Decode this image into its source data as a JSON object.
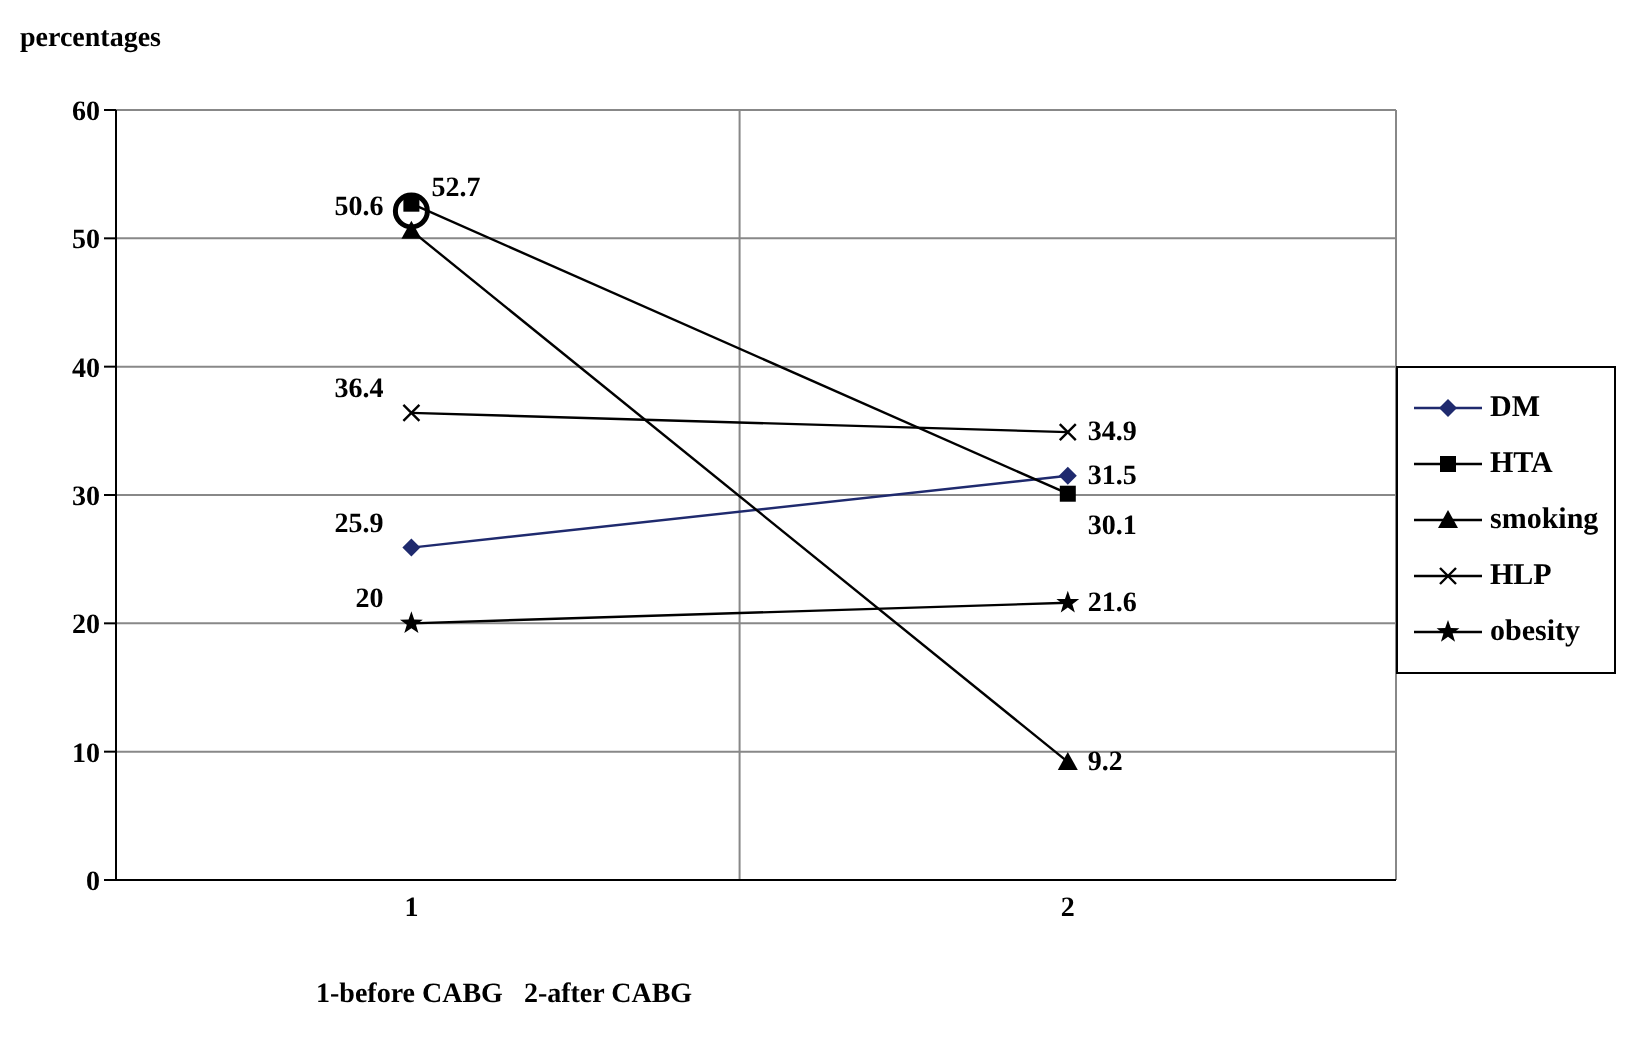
{
  "chart_data": {
    "type": "line",
    "ylabel": "percentages",
    "xlabel": "1-before CABG   2-after CABG",
    "categories": [
      "1",
      "2"
    ],
    "ylim": [
      0,
      60
    ],
    "yticks": [
      0,
      10,
      20,
      30,
      40,
      50,
      60
    ],
    "grid": true,
    "legend": "right",
    "data_labels": true,
    "line_style": "solid",
    "series": [
      {
        "name": "DM",
        "color": "#1f2a6e",
        "marker": "diamond",
        "values": [
          25.9,
          31.5
        ]
      },
      {
        "name": "HTA",
        "color": "#000000",
        "marker": "square",
        "values": [
          52.7,
          30.1
        ]
      },
      {
        "name": "smoking",
        "color": "#000000",
        "marker": "triangle",
        "values": [
          50.6,
          9.2
        ]
      },
      {
        "name": "HLP",
        "color": "#000000",
        "marker": "cross",
        "values": [
          36.4,
          34.9
        ]
      },
      {
        "name": "obesity",
        "color": "#000000",
        "marker": "star",
        "values": [
          20,
          21.6
        ]
      }
    ]
  }
}
